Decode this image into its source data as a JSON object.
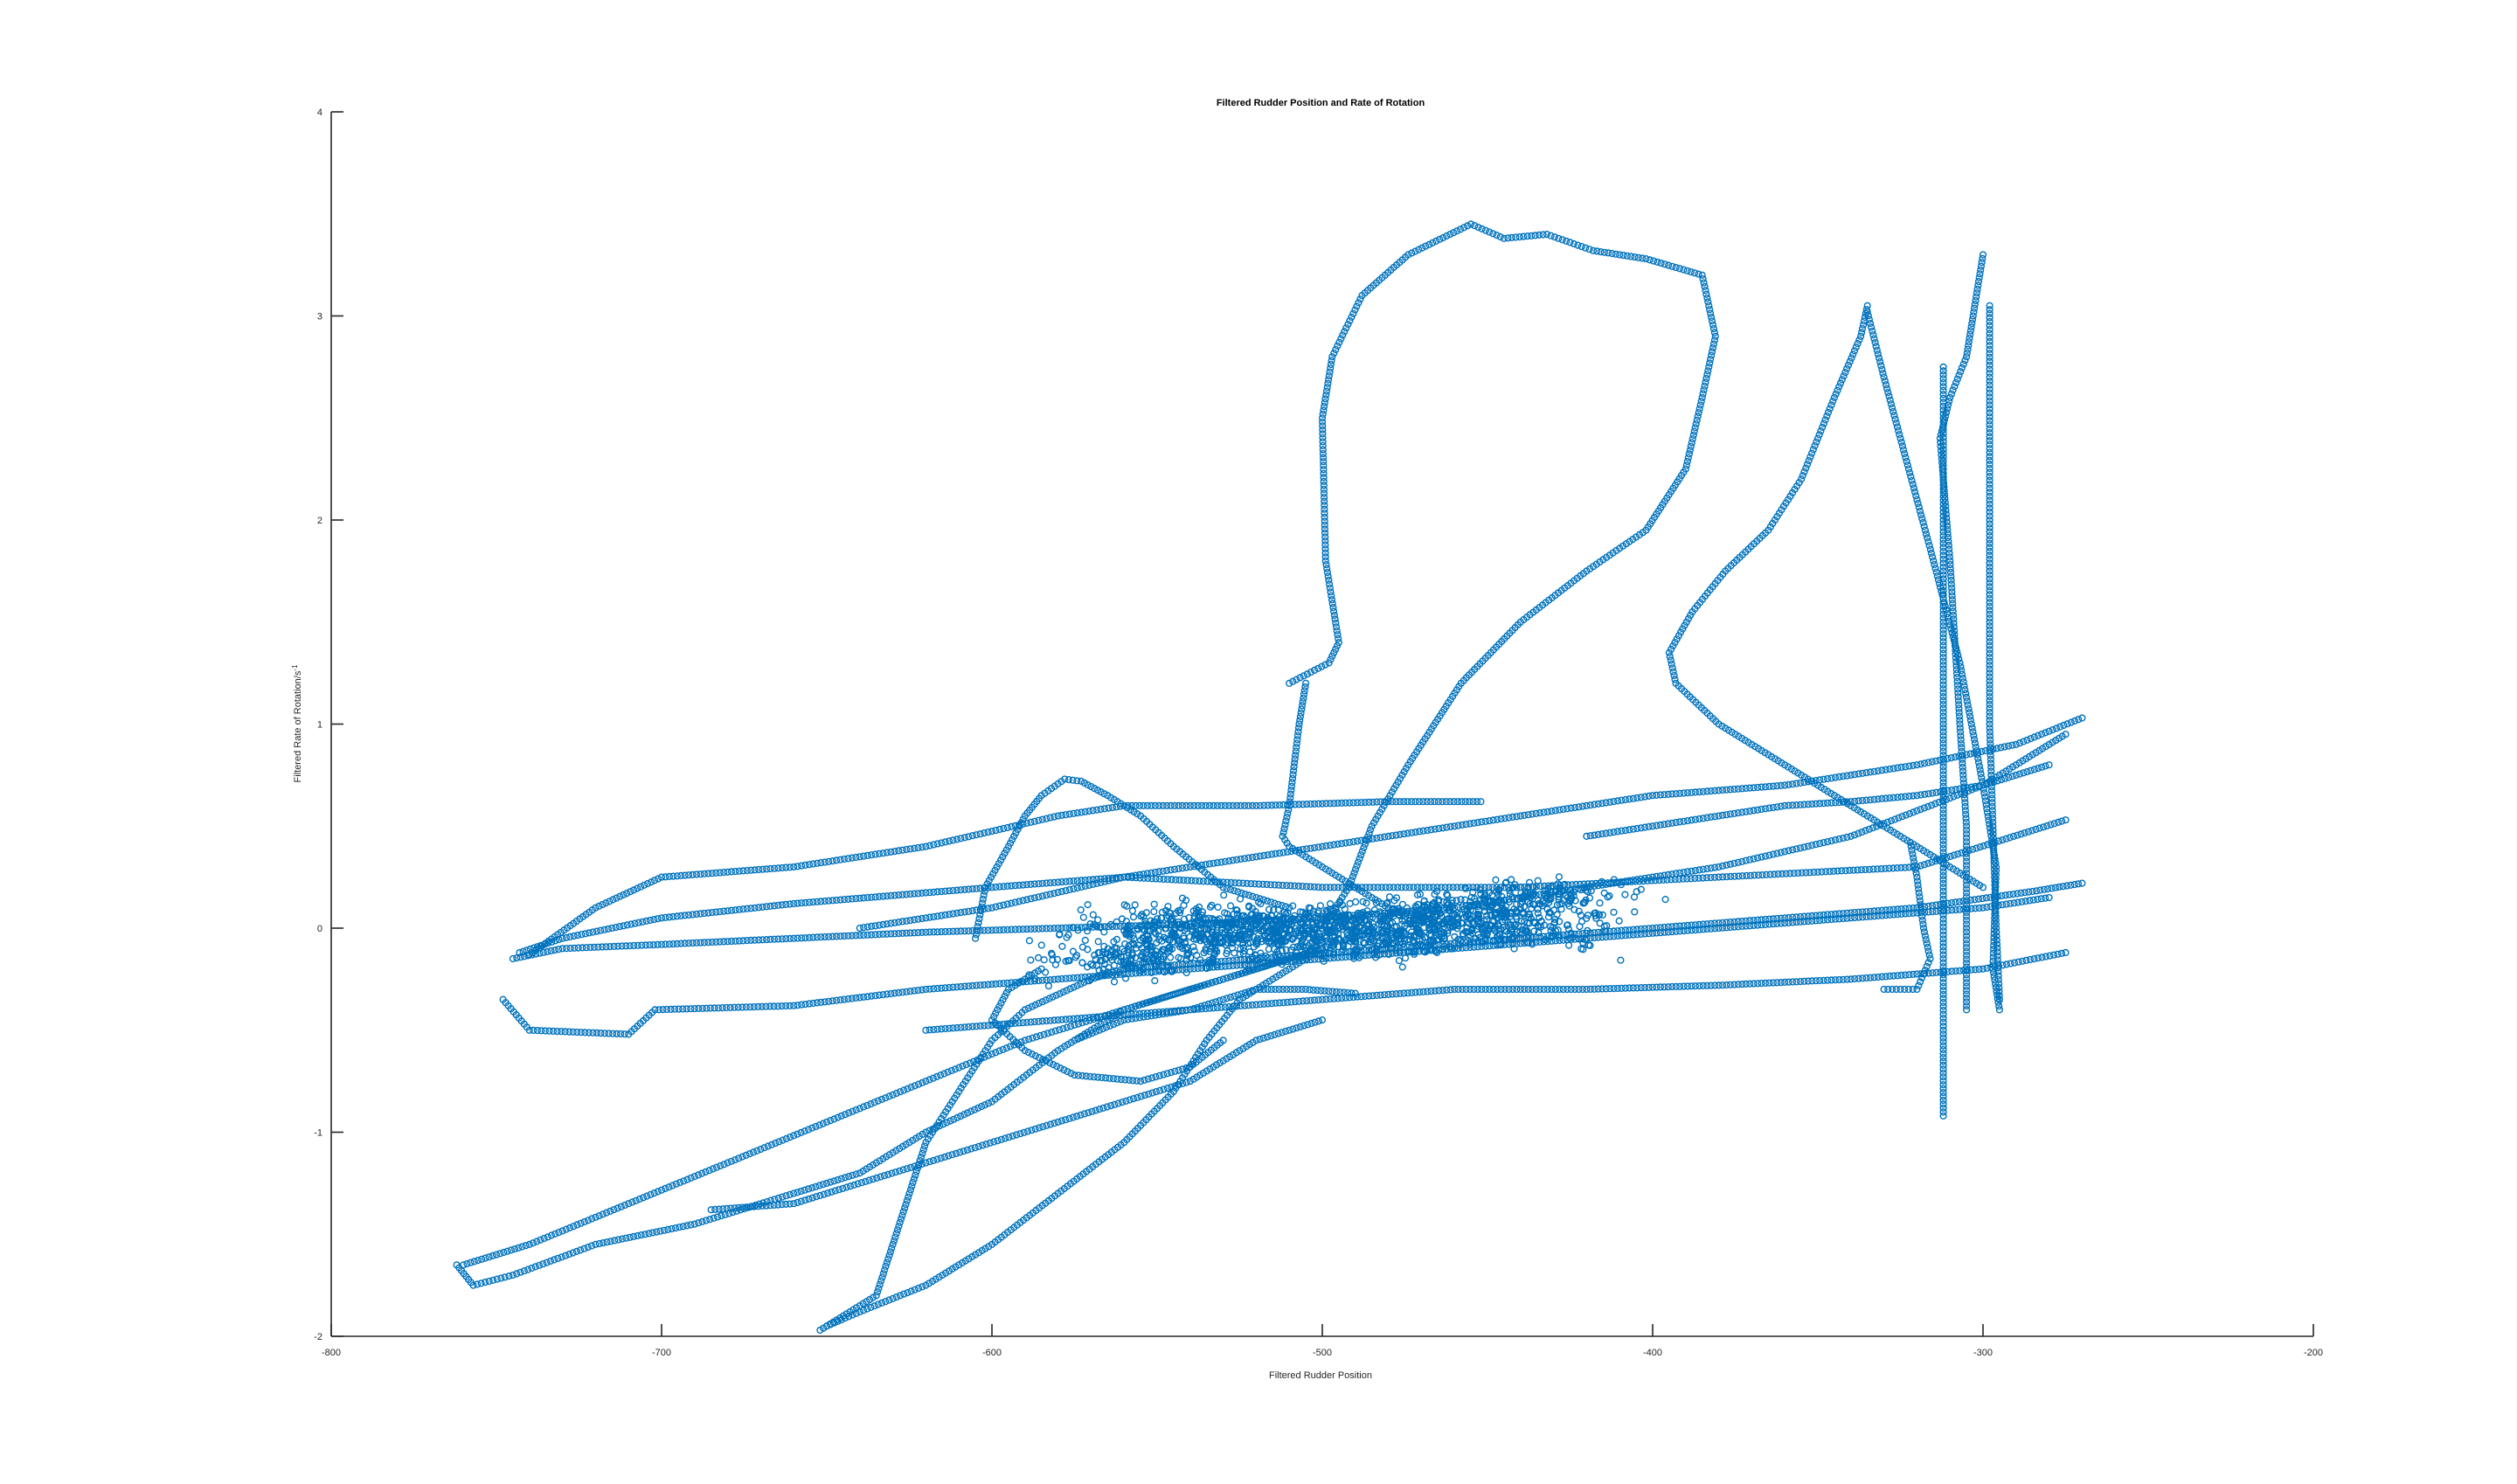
{
  "chart_data": {
    "type": "scatter",
    "title": "Filtered Rudder Position and Rate of Rotation",
    "xlabel": "Filtered Rudder Position",
    "ylabel": "Filtered Rate of Rotation/s",
    "ylabel_superscript": "-1",
    "xlim": [
      -800,
      -200
    ],
    "ylim": [
      -2,
      4
    ],
    "xticks": [
      "-800",
      "-700",
      "-600",
      "-500",
      "-400",
      "-300",
      "-200"
    ],
    "yticks": [
      "-2",
      "-1",
      "0",
      "1",
      "2",
      "3",
      "4"
    ],
    "grid": false,
    "legend": "none",
    "marker": "open-circle",
    "color": "#0072BD",
    "series": [
      {
        "points": [
          [
            -500,
            0.0
          ],
          [
            -520,
            -0.05
          ],
          [
            -470,
            0.05
          ],
          [
            -450,
            0.1
          ],
          [
            -540,
            -0.1
          ],
          [
            -430,
            0.15
          ],
          [
            -560,
            -0.15
          ],
          [
            -490,
            0.02
          ],
          [
            -510,
            -0.02
          ],
          [
            -480,
            -0.06
          ],
          [
            -460,
            0.02
          ],
          [
            -530,
            0.04
          ],
          [
            -440,
            0.0
          ],
          [
            -550,
            0.0
          ]
        ]
      }
    ],
    "paths": [
      [
        [
          -505,
          1.2
        ],
        [
          -507,
          1.0
        ],
        [
          -510,
          0.6
        ],
        [
          -512,
          0.45
        ],
        [
          -510,
          0.4
        ],
        [
          -500,
          0.3
        ],
        [
          -490,
          0.2
        ],
        [
          -480,
          0.1
        ],
        [
          -470,
          0.05
        ]
      ],
      [
        [
          -510,
          1.2
        ],
        [
          -498,
          1.3
        ],
        [
          -495,
          1.4
        ],
        [
          -499,
          1.8
        ],
        [
          -500,
          2.5
        ],
        [
          -497,
          2.8
        ],
        [
          -488,
          3.1
        ],
        [
          -474,
          3.3
        ],
        [
          -455,
          3.45
        ],
        [
          -445,
          3.38
        ],
        [
          -432,
          3.4
        ],
        [
          -418,
          3.32
        ],
        [
          -402,
          3.28
        ],
        [
          -385,
          3.2
        ],
        [
          -381,
          2.9
        ],
        [
          -385,
          2.6
        ],
        [
          -390,
          2.25
        ],
        [
          -402,
          1.95
        ],
        [
          -420,
          1.75
        ],
        [
          -440,
          1.5
        ],
        [
          -458,
          1.2
        ],
        [
          -474,
          0.8
        ],
        [
          -485,
          0.5
        ],
        [
          -492,
          0.2
        ],
        [
          -500,
          0.0
        ]
      ],
      [
        [
          -335,
          3.05
        ],
        [
          -337,
          2.9
        ],
        [
          -345,
          2.6
        ],
        [
          -355,
          2.2
        ],
        [
          -365,
          1.95
        ],
        [
          -378,
          1.75
        ],
        [
          -388,
          1.55
        ],
        [
          -395,
          1.35
        ],
        [
          -393,
          1.2
        ],
        [
          -380,
          1.0
        ],
        [
          -360,
          0.8
        ],
        [
          -340,
          0.6
        ],
        [
          -320,
          0.4
        ],
        [
          -300,
          0.2
        ]
      ],
      [
        [
          -335,
          3.02
        ],
        [
          -330,
          2.7
        ],
        [
          -325,
          2.4
        ],
        [
          -320,
          2.1
        ],
        [
          -315,
          1.8
        ],
        [
          -307,
          1.3
        ],
        [
          -300,
          0.7
        ],
        [
          -296,
          0.3
        ],
        [
          -297,
          -0.2
        ],
        [
          -295,
          -0.4
        ]
      ],
      [
        [
          -300,
          3.3
        ],
        [
          -303,
          3.0
        ],
        [
          -305,
          2.8
        ],
        [
          -310,
          2.6
        ],
        [
          -313,
          2.4
        ],
        [
          -312,
          2.2
        ],
        [
          -310,
          1.8
        ],
        [
          -307,
          1.0
        ],
        [
          -305,
          0.5
        ],
        [
          -305,
          0.0
        ],
        [
          -305,
          -0.4
        ]
      ],
      [
        [
          -312,
          2.75
        ],
        [
          -312,
          2.0
        ],
        [
          -312,
          1.0
        ],
        [
          -312,
          0.2
        ],
        [
          -312,
          -0.5
        ],
        [
          -312,
          -0.92
        ]
      ],
      [
        [
          -298,
          3.05
        ],
        [
          -298,
          2.0
        ],
        [
          -298,
          1.0
        ],
        [
          -296,
          0.0
        ],
        [
          -295,
          -0.35
        ]
      ],
      [
        [
          -743,
          -0.12
        ],
        [
          -730,
          -0.05
        ],
        [
          -700,
          0.05
        ],
        [
          -660,
          0.12
        ],
        [
          -600,
          0.2
        ],
        [
          -560,
          0.25
        ],
        [
          -500,
          0.2
        ],
        [
          -440,
          0.2
        ],
        [
          -380,
          0.25
        ],
        [
          -320,
          0.3
        ],
        [
          -275,
          0.53
        ]
      ],
      [
        [
          -748,
          -0.35
        ],
        [
          -740,
          -0.5
        ],
        [
          -710,
          -0.52
        ],
        [
          -702,
          -0.4
        ],
        [
          -660,
          -0.38
        ],
        [
          -620,
          -0.3
        ],
        [
          -580,
          -0.25
        ],
        [
          -540,
          -0.2
        ],
        [
          -500,
          -0.15
        ],
        [
          -460,
          -0.1
        ],
        [
          -420,
          -0.05
        ],
        [
          -380,
          0.0
        ],
        [
          -340,
          0.05
        ],
        [
          -300,
          0.1
        ],
        [
          -280,
          0.15
        ]
      ],
      [
        [
          -745,
          -0.15
        ],
        [
          -730,
          -0.1
        ],
        [
          -700,
          -0.08
        ],
        [
          -660,
          -0.05
        ],
        [
          -620,
          -0.02
        ],
        [
          -580,
          0.0
        ],
        [
          -540,
          0.02
        ],
        [
          -500,
          0.05
        ],
        [
          -460,
          0.1
        ],
        [
          -420,
          0.2
        ],
        [
          -380,
          0.3
        ],
        [
          -340,
          0.45
        ],
        [
          -300,
          0.7
        ],
        [
          -275,
          0.95
        ]
      ],
      [
        [
          -740,
          -0.13
        ],
        [
          -720,
          0.1
        ],
        [
          -700,
          0.25
        ],
        [
          -660,
          0.3
        ],
        [
          -620,
          0.4
        ],
        [
          -580,
          0.55
        ],
        [
          -560,
          0.6
        ],
        [
          -520,
          0.6
        ],
        [
          -480,
          0.62
        ],
        [
          -452,
          0.62
        ]
      ],
      [
        [
          -762,
          -1.65
        ],
        [
          -757,
          -1.75
        ],
        [
          -745,
          -1.7
        ],
        [
          -720,
          -1.55
        ],
        [
          -690,
          -1.45
        ],
        [
          -660,
          -1.3
        ],
        [
          -640,
          -1.2
        ],
        [
          -620,
          -1.0
        ],
        [
          -600,
          -0.85
        ],
        [
          -580,
          -0.6
        ],
        [
          -560,
          -0.4
        ],
        [
          -540,
          -0.3
        ],
        [
          -520,
          -0.2
        ],
        [
          -500,
          -0.1
        ]
      ],
      [
        [
          -760,
          -1.65
        ],
        [
          -740,
          -1.55
        ],
        [
          -710,
          -1.35
        ],
        [
          -680,
          -1.15
        ],
        [
          -650,
          -0.95
        ],
        [
          -620,
          -0.75
        ],
        [
          -590,
          -0.55
        ],
        [
          -560,
          -0.4
        ],
        [
          -530,
          -0.25
        ],
        [
          -500,
          -0.1
        ]
      ],
      [
        [
          -650,
          -1.95
        ],
        [
          -640,
          -1.88
        ],
        [
          -620,
          -1.75
        ],
        [
          -600,
          -1.55
        ],
        [
          -580,
          -1.3
        ],
        [
          -560,
          -1.05
        ],
        [
          -545,
          -0.8
        ],
        [
          -535,
          -0.55
        ],
        [
          -525,
          -0.35
        ],
        [
          -510,
          -0.2
        ],
        [
          -495,
          -0.05
        ]
      ],
      [
        [
          -652,
          -1.97
        ],
        [
          -645,
          -1.9
        ],
        [
          -635,
          -1.8
        ],
        [
          -630,
          -1.55
        ],
        [
          -625,
          -1.3
        ],
        [
          -620,
          -1.05
        ],
        [
          -610,
          -0.8
        ],
        [
          -600,
          -0.55
        ],
        [
          -590,
          -0.4
        ],
        [
          -570,
          -0.25
        ],
        [
          -550,
          -0.15
        ]
      ],
      [
        [
          -605,
          -0.05
        ],
        [
          -602,
          0.2
        ],
        [
          -595,
          0.4
        ],
        [
          -590,
          0.55
        ],
        [
          -585,
          0.65
        ],
        [
          -578,
          0.73
        ],
        [
          -573,
          0.72
        ],
        [
          -565,
          0.65
        ],
        [
          -555,
          0.55
        ],
        [
          -545,
          0.4
        ],
        [
          -530,
          0.2
        ],
        [
          -510,
          0.1
        ]
      ],
      [
        [
          -685,
          -1.38
        ],
        [
          -660,
          -1.35
        ],
        [
          -620,
          -1.15
        ],
        [
          -580,
          -0.95
        ],
        [
          -540,
          -0.75
        ],
        [
          -520,
          -0.55
        ],
        [
          -500,
          -0.45
        ]
      ],
      [
        [
          -270,
          0.22
        ],
        [
          -285,
          0.18
        ],
        [
          -320,
          0.1
        ],
        [
          -360,
          0.05
        ],
        [
          -400,
          0.0
        ],
        [
          -440,
          -0.05
        ],
        [
          -480,
          -0.1
        ],
        [
          -520,
          -0.15
        ],
        [
          -560,
          -0.2
        ]
      ],
      [
        [
          -270,
          1.03
        ],
        [
          -290,
          0.9
        ],
        [
          -320,
          0.8
        ],
        [
          -360,
          0.7
        ],
        [
          -400,
          0.65
        ],
        [
          -440,
          0.55
        ],
        [
          -480,
          0.45
        ],
        [
          -520,
          0.35
        ],
        [
          -560,
          0.25
        ],
        [
          -600,
          0.1
        ],
        [
          -640,
          0.0
        ]
      ],
      [
        [
          -275,
          -0.12
        ],
        [
          -300,
          -0.2
        ],
        [
          -340,
          -0.25
        ],
        [
          -380,
          -0.28
        ],
        [
          -420,
          -0.3
        ],
        [
          -460,
          -0.3
        ],
        [
          -500,
          -0.35
        ],
        [
          -540,
          -0.4
        ],
        [
          -580,
          -0.45
        ],
        [
          -620,
          -0.5
        ]
      ],
      [
        [
          -530,
          -0.55
        ],
        [
          -540,
          -0.68
        ],
        [
          -555,
          -0.75
        ],
        [
          -575,
          -0.72
        ],
        [
          -590,
          -0.6
        ],
        [
          -600,
          -0.45
        ],
        [
          -595,
          -0.3
        ],
        [
          -585,
          -0.2
        ]
      ],
      [
        [
          -420,
          0.45
        ],
        [
          -400,
          0.5
        ],
        [
          -380,
          0.55
        ],
        [
          -360,
          0.6
        ],
        [
          -340,
          0.62
        ],
        [
          -320,
          0.65
        ],
        [
          -300,
          0.7
        ],
        [
          -280,
          0.8
        ]
      ],
      [
        [
          -575,
          -0.55
        ],
        [
          -560,
          -0.45
        ],
        [
          -540,
          -0.4
        ],
        [
          -520,
          -0.3
        ],
        [
          -505,
          -0.3
        ],
        [
          -490,
          -0.32
        ]
      ],
      [
        [
          -322,
          0.42
        ],
        [
          -320,
          0.25
        ],
        [
          -318,
          0.0
        ],
        [
          -316,
          -0.15
        ],
        [
          -320,
          -0.3
        ],
        [
          -330,
          -0.3
        ]
      ]
    ]
  }
}
